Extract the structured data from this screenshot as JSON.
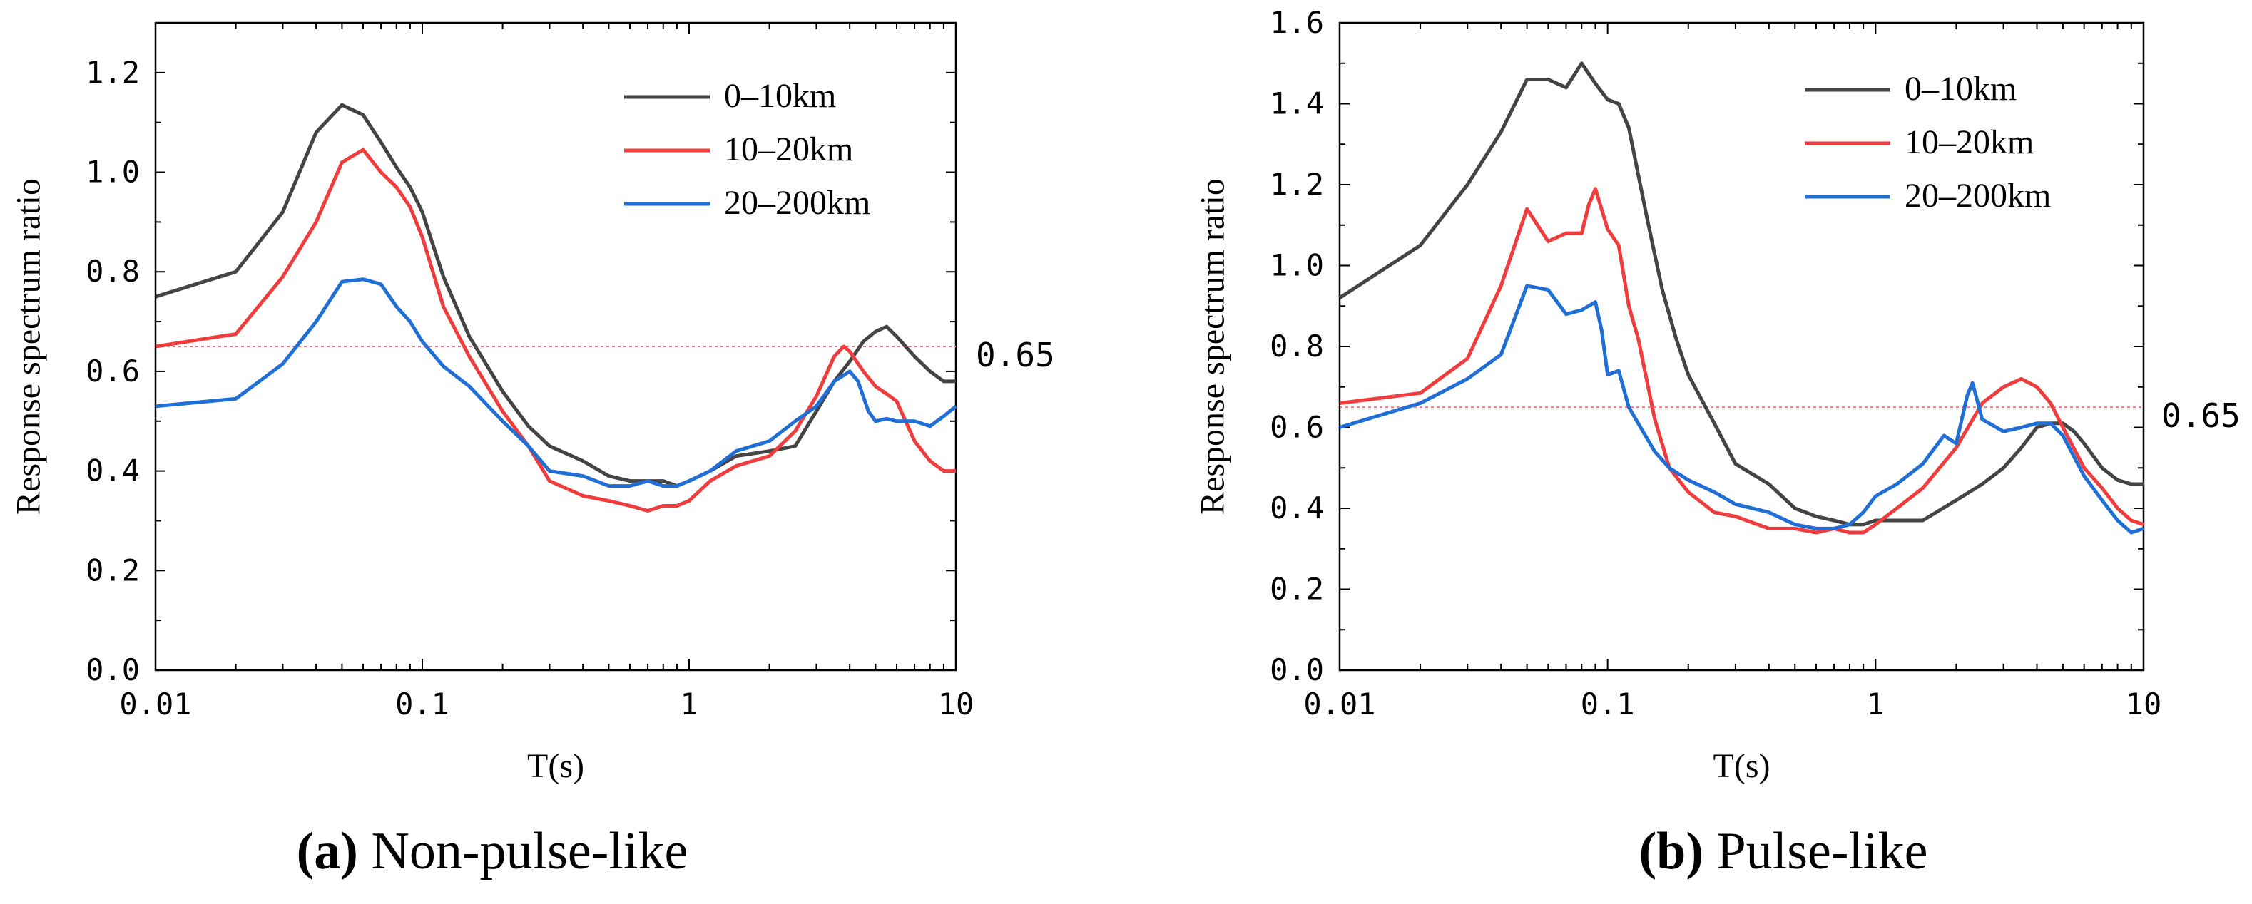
{
  "chart_data": [
    {
      "type": "line",
      "title": "",
      "xlabel": "T(s)",
      "ylabel": "Response spectrum ratio",
      "xscale": "log",
      "xlim": [
        0.01,
        10
      ],
      "ylim": [
        0,
        1.3
      ],
      "xticks": [
        "0.01",
        "0.1",
        "1",
        "10"
      ],
      "yticks": [
        "0.0",
        "0.2",
        "0.4",
        "0.6",
        "0.8",
        "1.0",
        "1.2"
      ],
      "grid": false,
      "legend_position": "top-right",
      "caption_letter": "(a)",
      "caption_text": " Non-pulse-like",
      "reference_line": {
        "y": 0.65,
        "label": "0.65",
        "color": "#f08080"
      },
      "series": [
        {
          "name": "0–10km",
          "color": "#444444",
          "x": [
            0.01,
            0.02,
            0.03,
            0.04,
            0.05,
            0.06,
            0.07,
            0.08,
            0.09,
            0.1,
            0.12,
            0.15,
            0.2,
            0.25,
            0.3,
            0.4,
            0.5,
            0.6,
            0.7,
            0.8,
            0.9,
            1.0,
            1.2,
            1.5,
            2.0,
            2.5,
            3.0,
            3.5,
            4.0,
            4.5,
            5.0,
            5.5,
            6.0,
            7.0,
            8.0,
            9.0,
            10.0
          ],
          "y": [
            0.75,
            0.8,
            0.92,
            1.08,
            1.135,
            1.115,
            1.06,
            1.01,
            0.97,
            0.92,
            0.79,
            0.67,
            0.56,
            0.49,
            0.45,
            0.42,
            0.39,
            0.38,
            0.38,
            0.38,
            0.37,
            0.38,
            0.4,
            0.43,
            0.44,
            0.45,
            0.52,
            0.58,
            0.62,
            0.66,
            0.68,
            0.69,
            0.67,
            0.63,
            0.6,
            0.58,
            0.58
          ]
        },
        {
          "name": "10–20km",
          "color": "#f03c3c",
          "x": [
            0.01,
            0.02,
            0.03,
            0.04,
            0.05,
            0.06,
            0.07,
            0.08,
            0.09,
            0.1,
            0.12,
            0.15,
            0.2,
            0.25,
            0.3,
            0.4,
            0.5,
            0.6,
            0.7,
            0.8,
            0.9,
            1.0,
            1.2,
            1.5,
            2.0,
            2.5,
            3.0,
            3.5,
            3.8,
            4.0,
            4.5,
            5.0,
            5.5,
            6.0,
            7.0,
            8.0,
            9.0,
            10.0
          ],
          "y": [
            0.65,
            0.675,
            0.79,
            0.9,
            1.02,
            1.045,
            1.0,
            0.97,
            0.93,
            0.87,
            0.73,
            0.63,
            0.52,
            0.45,
            0.38,
            0.35,
            0.34,
            0.33,
            0.32,
            0.33,
            0.33,
            0.34,
            0.38,
            0.41,
            0.43,
            0.48,
            0.55,
            0.63,
            0.65,
            0.64,
            0.6,
            0.57,
            0.555,
            0.54,
            0.46,
            0.42,
            0.4,
            0.4
          ]
        },
        {
          "name": "20–200km",
          "color": "#1f6fd6",
          "x": [
            0.01,
            0.02,
            0.03,
            0.04,
            0.05,
            0.06,
            0.07,
            0.08,
            0.09,
            0.1,
            0.12,
            0.15,
            0.2,
            0.25,
            0.3,
            0.4,
            0.5,
            0.6,
            0.7,
            0.8,
            0.9,
            1.0,
            1.2,
            1.5,
            2.0,
            2.5,
            3.0,
            3.5,
            4.0,
            4.3,
            4.7,
            5.0,
            5.5,
            6.0,
            7.0,
            8.0,
            9.0,
            10.0
          ],
          "y": [
            0.53,
            0.545,
            0.615,
            0.7,
            0.78,
            0.785,
            0.775,
            0.73,
            0.7,
            0.66,
            0.61,
            0.57,
            0.5,
            0.45,
            0.4,
            0.39,
            0.37,
            0.37,
            0.38,
            0.37,
            0.37,
            0.38,
            0.4,
            0.44,
            0.46,
            0.5,
            0.53,
            0.58,
            0.6,
            0.58,
            0.52,
            0.5,
            0.505,
            0.5,
            0.5,
            0.49,
            0.51,
            0.53
          ]
        }
      ]
    },
    {
      "type": "line",
      "title": "",
      "xlabel": "T(s)",
      "ylabel": "Response spectrum ratio",
      "xscale": "log",
      "xlim": [
        0.01,
        10
      ],
      "ylim": [
        0,
        1.6
      ],
      "xticks": [
        "0.01",
        "0.1",
        "1",
        "10"
      ],
      "yticks": [
        "0.0",
        "0.2",
        "0.4",
        "0.6",
        "0.8",
        "1.0",
        "1.2",
        "1.4",
        "1.6"
      ],
      "grid": false,
      "legend_position": "top-right",
      "caption_letter": "(b)",
      "caption_text": " Pulse-like",
      "reference_line": {
        "y": 0.65,
        "label": "0.65",
        "color": "#f08080"
      },
      "series": [
        {
          "name": "0–10km",
          "color": "#444444",
          "x": [
            0.01,
            0.02,
            0.03,
            0.04,
            0.05,
            0.06,
            0.07,
            0.08,
            0.09,
            0.1,
            0.11,
            0.12,
            0.14,
            0.16,
            0.18,
            0.2,
            0.25,
            0.3,
            0.4,
            0.5,
            0.6,
            0.7,
            0.8,
            0.9,
            1.0,
            1.2,
            1.5,
            2.0,
            2.5,
            3.0,
            3.5,
            4.0,
            4.5,
            5.0,
            5.5,
            6.0,
            7.0,
            8.0,
            9.0,
            10.0
          ],
          "y": [
            0.92,
            1.05,
            1.2,
            1.33,
            1.46,
            1.46,
            1.44,
            1.5,
            1.45,
            1.41,
            1.4,
            1.34,
            1.12,
            0.94,
            0.82,
            0.73,
            0.61,
            0.51,
            0.46,
            0.4,
            0.38,
            0.37,
            0.36,
            0.36,
            0.37,
            0.37,
            0.37,
            0.42,
            0.46,
            0.5,
            0.55,
            0.6,
            0.61,
            0.61,
            0.59,
            0.56,
            0.5,
            0.47,
            0.46,
            0.46
          ]
        },
        {
          "name": "10–20km",
          "color": "#f03c3c",
          "x": [
            0.01,
            0.02,
            0.03,
            0.04,
            0.05,
            0.06,
            0.07,
            0.08,
            0.085,
            0.09,
            0.1,
            0.11,
            0.12,
            0.13,
            0.15,
            0.17,
            0.2,
            0.25,
            0.3,
            0.4,
            0.5,
            0.6,
            0.7,
            0.8,
            0.9,
            1.0,
            1.2,
            1.5,
            2.0,
            2.5,
            3.0,
            3.5,
            4.0,
            4.5,
            5.0,
            6.0,
            7.0,
            8.0,
            9.0,
            10.0
          ],
          "y": [
            0.66,
            0.685,
            0.77,
            0.95,
            1.14,
            1.06,
            1.08,
            1.08,
            1.15,
            1.19,
            1.09,
            1.05,
            0.9,
            0.82,
            0.62,
            0.5,
            0.44,
            0.39,
            0.38,
            0.35,
            0.35,
            0.34,
            0.35,
            0.34,
            0.34,
            0.36,
            0.4,
            0.45,
            0.55,
            0.66,
            0.7,
            0.72,
            0.7,
            0.66,
            0.6,
            0.5,
            0.45,
            0.4,
            0.37,
            0.36
          ]
        },
        {
          "name": "20–200km",
          "color": "#1f6fd6",
          "x": [
            0.01,
            0.02,
            0.03,
            0.04,
            0.05,
            0.06,
            0.07,
            0.08,
            0.09,
            0.095,
            0.1,
            0.11,
            0.12,
            0.13,
            0.15,
            0.17,
            0.2,
            0.25,
            0.3,
            0.4,
            0.5,
            0.6,
            0.7,
            0.8,
            0.9,
            1.0,
            1.2,
            1.5,
            1.8,
            2.0,
            2.2,
            2.3,
            2.5,
            3.0,
            3.5,
            4.0,
            4.5,
            5.0,
            6.0,
            7.0,
            8.0,
            9.0,
            10.0
          ],
          "y": [
            0.6,
            0.66,
            0.72,
            0.78,
            0.95,
            0.94,
            0.88,
            0.89,
            0.91,
            0.84,
            0.73,
            0.74,
            0.65,
            0.61,
            0.54,
            0.5,
            0.47,
            0.44,
            0.41,
            0.39,
            0.36,
            0.35,
            0.35,
            0.36,
            0.39,
            0.43,
            0.46,
            0.51,
            0.58,
            0.56,
            0.68,
            0.71,
            0.62,
            0.59,
            0.6,
            0.61,
            0.61,
            0.58,
            0.48,
            0.42,
            0.37,
            0.34,
            0.35
          ]
        }
      ]
    }
  ]
}
